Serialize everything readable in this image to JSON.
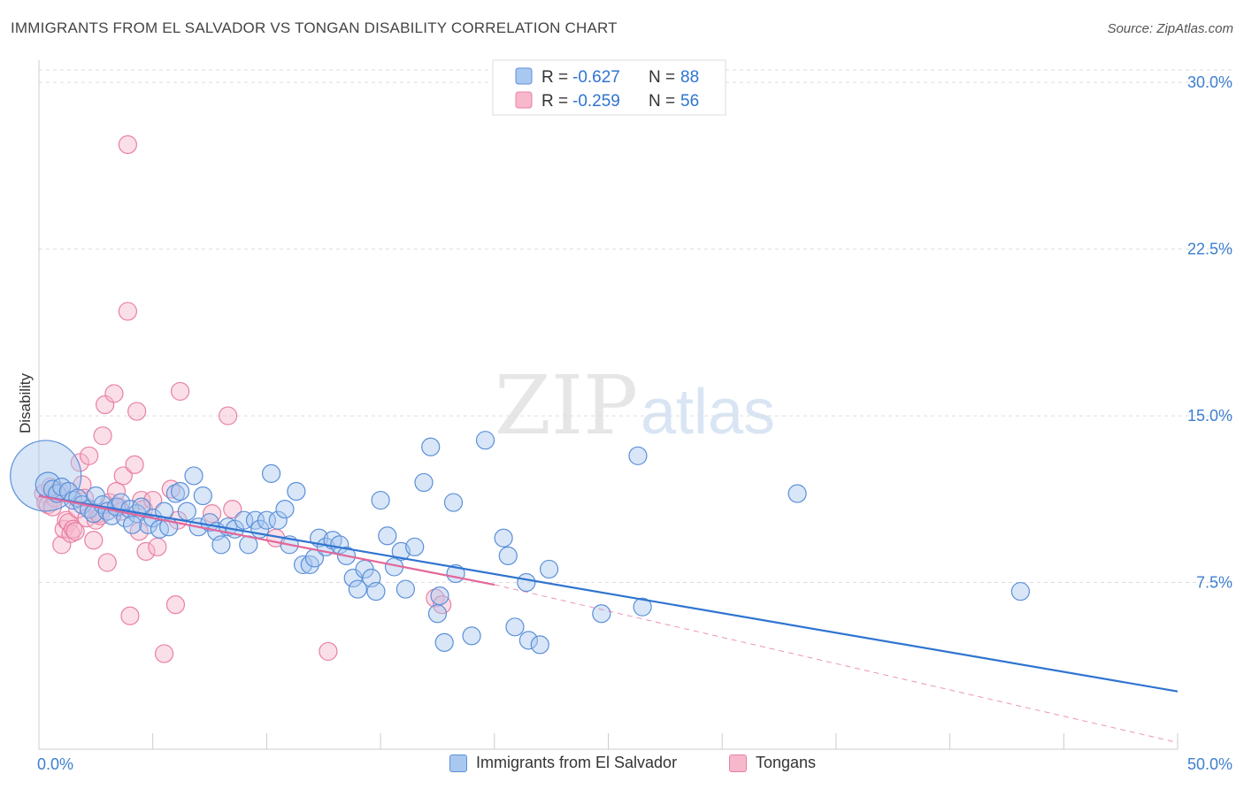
{
  "title": "IMMIGRANTS FROM EL SALVADOR VS TONGAN DISABILITY CORRELATION CHART",
  "source": "Source: ZipAtlas.com",
  "watermark": {
    "zip": "ZIP",
    "atlas": "atlas"
  },
  "colors": {
    "blue_fill": "#a9c8f0",
    "blue_stroke": "#5b8fd8",
    "blue_line": "#2f74d0",
    "pink_fill": "#f7b8cc",
    "pink_stroke": "#e87fa3",
    "pink_line": "#e2679a",
    "axis_text": "#3d7fcf",
    "grid": "#dddddd"
  },
  "legend": {
    "entries": [
      {
        "r_label": "R = ",
        "r_value": "-0.627",
        "n_label": "N = ",
        "n_value": "88"
      },
      {
        "r_label": "R = ",
        "r_value": "-0.259",
        "n_label": "N = ",
        "n_value": "56"
      }
    ]
  },
  "bottom_legend": {
    "blue": "Immigrants from El Salvador",
    "pink": "Tongans"
  },
  "chart_data": {
    "type": "scatter",
    "title": "IMMIGRANTS FROM EL SALVADOR VS TONGAN DISABILITY CORRELATION CHART",
    "xlabel": "",
    "ylabel": "Disability",
    "xlim": [
      0,
      50
    ],
    "ylim": [
      0,
      31
    ],
    "x_tick_labels": [
      "0.0%",
      "50.0%"
    ],
    "y_ticks": [
      7.5,
      15.0,
      22.5,
      30.0
    ],
    "y_tick_labels": [
      "7.5%",
      "15.0%",
      "22.5%",
      "30.0%"
    ],
    "grid": true,
    "legend_position": "top-center",
    "series": [
      {
        "name": "Immigrants from El Salvador",
        "color": "#5b8fd8",
        "trend": {
          "x": [
            0,
            50
          ],
          "y": [
            11.4,
            2.6
          ],
          "style": "solid"
        },
        "points": [
          [
            0.3,
            12.3
          ],
          [
            0.4,
            11.9
          ],
          [
            0.6,
            11.7
          ],
          [
            0.8,
            11.5
          ],
          [
            1.0,
            11.8
          ],
          [
            1.3,
            11.6
          ],
          [
            1.5,
            11.2
          ],
          [
            1.7,
            11.3
          ],
          [
            1.9,
            11.0
          ],
          [
            2.2,
            10.8
          ],
          [
            2.4,
            10.6
          ],
          [
            2.5,
            11.4
          ],
          [
            2.8,
            11.0
          ],
          [
            3.0,
            10.7
          ],
          [
            3.2,
            10.5
          ],
          [
            3.4,
            10.9
          ],
          [
            3.6,
            11.1
          ],
          [
            3.8,
            10.4
          ],
          [
            4.0,
            10.8
          ],
          [
            4.3,
            10.6
          ],
          [
            4.5,
            10.9
          ],
          [
            4.8,
            10.1
          ],
          [
            5.0,
            10.4
          ],
          [
            5.3,
            9.9
          ],
          [
            5.5,
            10.7
          ],
          [
            5.7,
            10.0
          ],
          [
            6.0,
            11.5
          ],
          [
            6.2,
            11.6
          ],
          [
            6.5,
            10.7
          ],
          [
            6.8,
            12.3
          ],
          [
            7.0,
            10.0
          ],
          [
            7.2,
            11.4
          ],
          [
            7.5,
            10.2
          ],
          [
            7.8,
            9.8
          ],
          [
            8.0,
            9.2
          ],
          [
            8.3,
            10.0
          ],
          [
            8.6,
            9.9
          ],
          [
            9.0,
            10.3
          ],
          [
            9.2,
            9.2
          ],
          [
            9.5,
            10.3
          ],
          [
            9.7,
            9.9
          ],
          [
            10.0,
            10.3
          ],
          [
            10.2,
            12.4
          ],
          [
            10.5,
            10.3
          ],
          [
            10.8,
            10.8
          ],
          [
            11.0,
            9.2
          ],
          [
            11.3,
            11.6
          ],
          [
            11.6,
            8.3
          ],
          [
            11.9,
            8.3
          ],
          [
            12.1,
            8.6
          ],
          [
            12.3,
            9.5
          ],
          [
            12.6,
            9.1
          ],
          [
            12.9,
            9.4
          ],
          [
            13.2,
            9.2
          ],
          [
            13.5,
            8.7
          ],
          [
            13.8,
            7.7
          ],
          [
            14.0,
            7.2
          ],
          [
            14.3,
            8.1
          ],
          [
            14.6,
            7.7
          ],
          [
            14.8,
            7.1
          ],
          [
            15.0,
            11.2
          ],
          [
            15.3,
            9.6
          ],
          [
            15.6,
            8.2
          ],
          [
            15.9,
            8.9
          ],
          [
            16.1,
            7.2
          ],
          [
            16.5,
            9.1
          ],
          [
            16.9,
            12.0
          ],
          [
            17.2,
            13.6
          ],
          [
            17.5,
            6.1
          ],
          [
            17.6,
            6.9
          ],
          [
            17.8,
            4.8
          ],
          [
            18.2,
            11.1
          ],
          [
            18.3,
            7.9
          ],
          [
            19.0,
            5.1
          ],
          [
            19.6,
            13.9
          ],
          [
            20.4,
            9.5
          ],
          [
            20.6,
            8.7
          ],
          [
            20.9,
            5.5
          ],
          [
            21.4,
            7.5
          ],
          [
            21.5,
            4.9
          ],
          [
            22.0,
            4.7
          ],
          [
            22.4,
            8.1
          ],
          [
            24.7,
            6.1
          ],
          [
            26.3,
            13.2
          ],
          [
            26.5,
            6.4
          ],
          [
            33.3,
            11.5
          ],
          [
            43.1,
            7.1
          ],
          [
            4.1,
            10.1
          ]
        ],
        "sizes": [
          40,
          14,
          10,
          10,
          10,
          10,
          10,
          10,
          10,
          10,
          10,
          10,
          10,
          10,
          10,
          10,
          10,
          10,
          10,
          10,
          10,
          10,
          10,
          10,
          10,
          10,
          10,
          10,
          10,
          10,
          10,
          10,
          10,
          10,
          10,
          10,
          10,
          10,
          10,
          10,
          10,
          10,
          10,
          10,
          10,
          10,
          10,
          10,
          10,
          10,
          10,
          10,
          10,
          10,
          10,
          10,
          10,
          10,
          10,
          10,
          10,
          10,
          10,
          10,
          10,
          10,
          10,
          10,
          10,
          10,
          10,
          10,
          10,
          10,
          10,
          10,
          10,
          10,
          10,
          10,
          10,
          10,
          10,
          10,
          10,
          10,
          10,
          10
        ]
      },
      {
        "name": "Tongans",
        "color": "#e87fa3",
        "trend": {
          "x": [
            0,
            20
          ],
          "y": [
            11.4,
            7.4
          ],
          "style": "solid",
          "extension": {
            "x": [
              20,
              50
            ],
            "y": [
              7.4,
              0.3
            ],
            "style": "dashed"
          }
        },
        "points": [
          [
            0.2,
            11.5
          ],
          [
            0.3,
            11.1
          ],
          [
            0.4,
            11.0
          ],
          [
            0.5,
            11.8
          ],
          [
            0.7,
            11.3
          ],
          [
            0.9,
            11.6
          ],
          [
            1.0,
            9.2
          ],
          [
            1.1,
            9.9
          ],
          [
            1.2,
            10.3
          ],
          [
            1.3,
            10.2
          ],
          [
            1.4,
            9.7
          ],
          [
            1.5,
            9.9
          ],
          [
            1.6,
            9.8
          ],
          [
            1.7,
            10.8
          ],
          [
            1.8,
            12.9
          ],
          [
            1.9,
            11.9
          ],
          [
            2.0,
            11.3
          ],
          [
            2.1,
            10.4
          ],
          [
            2.2,
            13.2
          ],
          [
            2.4,
            9.4
          ],
          [
            2.5,
            10.3
          ],
          [
            2.6,
            10.6
          ],
          [
            2.8,
            14.1
          ],
          [
            2.9,
            15.5
          ],
          [
            3.0,
            8.4
          ],
          [
            3.1,
            11.1
          ],
          [
            3.3,
            16.0
          ],
          [
            3.4,
            11.6
          ],
          [
            3.5,
            10.9
          ],
          [
            3.6,
            10.7
          ],
          [
            3.7,
            12.3
          ],
          [
            3.9,
            27.2
          ],
          [
            3.9,
            19.7
          ],
          [
            4.0,
            6.0
          ],
          [
            4.2,
            12.8
          ],
          [
            4.3,
            15.2
          ],
          [
            4.4,
            9.8
          ],
          [
            4.5,
            11.2
          ],
          [
            4.6,
            10.8
          ],
          [
            4.7,
            8.9
          ],
          [
            5.0,
            11.2
          ],
          [
            5.2,
            9.1
          ],
          [
            5.5,
            4.3
          ],
          [
            5.8,
            11.7
          ],
          [
            6.0,
            6.5
          ],
          [
            6.1,
            10.3
          ],
          [
            6.2,
            16.1
          ],
          [
            7.6,
            10.6
          ],
          [
            8.3,
            15.0
          ],
          [
            8.5,
            10.8
          ],
          [
            10.4,
            9.5
          ],
          [
            12.7,
            4.4
          ],
          [
            17.4,
            6.8
          ],
          [
            17.7,
            6.5
          ],
          [
            0.6,
            10.9
          ],
          [
            2.7,
            10.5
          ]
        ]
      }
    ]
  }
}
